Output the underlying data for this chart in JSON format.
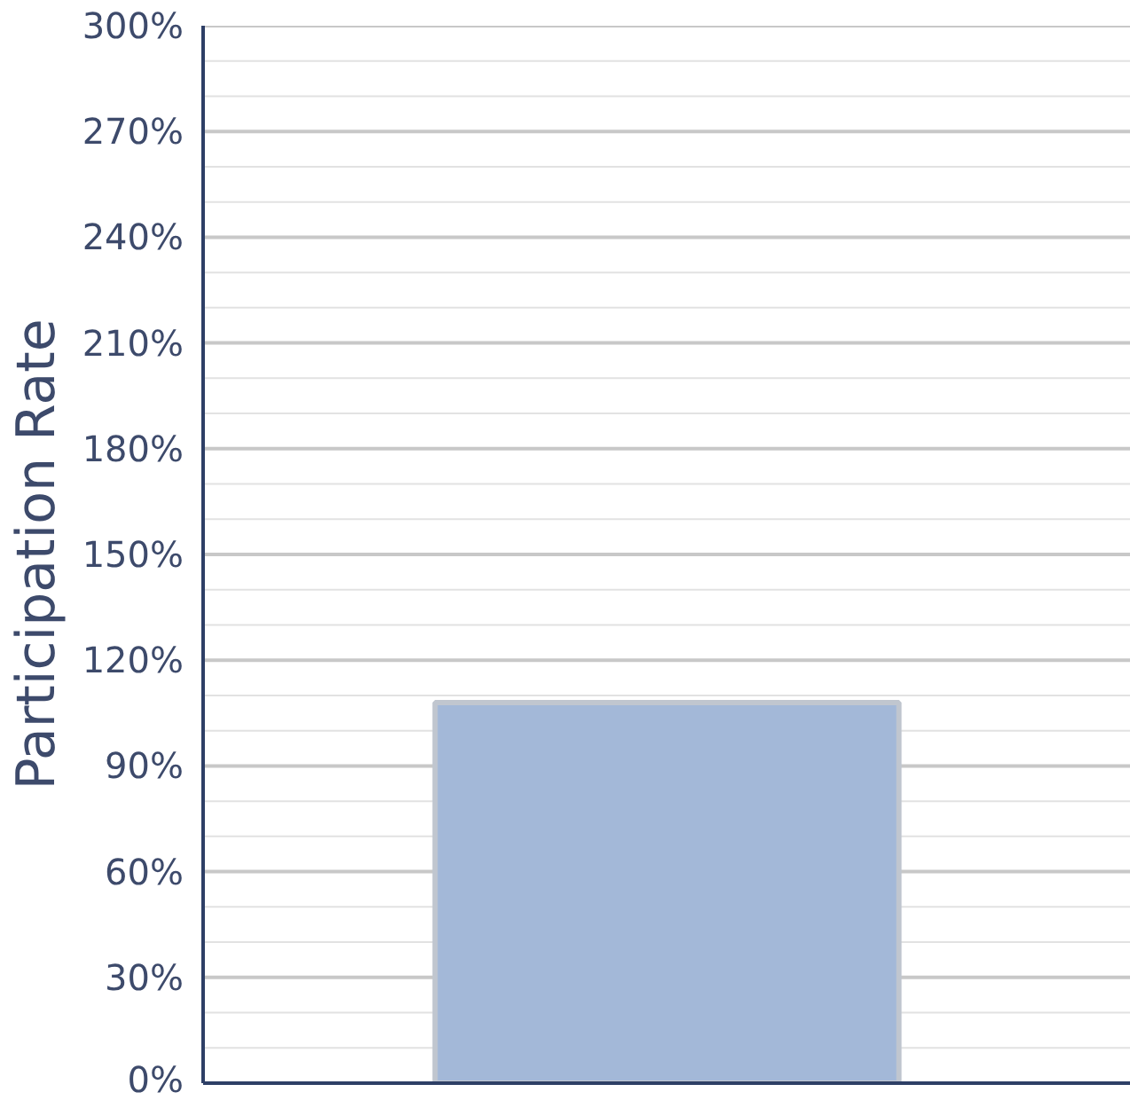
{
  "chart_data": {
    "type": "bar",
    "ylabel": "Participation Rate",
    "categories": [
      null
    ],
    "values": [
      108
    ],
    "color": "#a3b8d8",
    "ylim": [
      0,
      300
    ],
    "yticks": [
      {
        "value": 0,
        "label": "0%"
      },
      {
        "value": 10,
        "label": null
      },
      {
        "value": 20,
        "label": null
      },
      {
        "value": 30,
        "label": "30%"
      },
      {
        "value": 40,
        "label": null
      },
      {
        "value": 50,
        "label": null
      },
      {
        "value": 60,
        "label": "60%"
      },
      {
        "value": 70,
        "label": null
      },
      {
        "value": 80,
        "label": null
      },
      {
        "value": 90,
        "label": "90%"
      },
      {
        "value": 100,
        "label": null
      },
      {
        "value": 110,
        "label": null
      },
      {
        "value": 120,
        "label": "120%"
      },
      {
        "value": 130,
        "label": null
      },
      {
        "value": 140,
        "label": null
      },
      {
        "value": 150,
        "label": "150%"
      },
      {
        "value": 160,
        "label": null
      },
      {
        "value": 170,
        "label": null
      },
      {
        "value": 180,
        "label": "180%"
      },
      {
        "value": 190,
        "label": null
      },
      {
        "value": 200,
        "label": null
      },
      {
        "value": 210,
        "label": "210%"
      },
      {
        "value": 220,
        "label": null
      },
      {
        "value": 230,
        "label": null
      },
      {
        "value": 240,
        "label": "240%"
      },
      {
        "value": 250,
        "label": null
      },
      {
        "value": 260,
        "label": null
      },
      {
        "value": 270,
        "label": "270%"
      },
      {
        "value": 280,
        "label": null
      },
      {
        "value": 290,
        "label": null
      },
      {
        "value": 300,
        "label": "300%"
      }
    ],
    "grid": "y",
    "tick_labels": "y"
  }
}
